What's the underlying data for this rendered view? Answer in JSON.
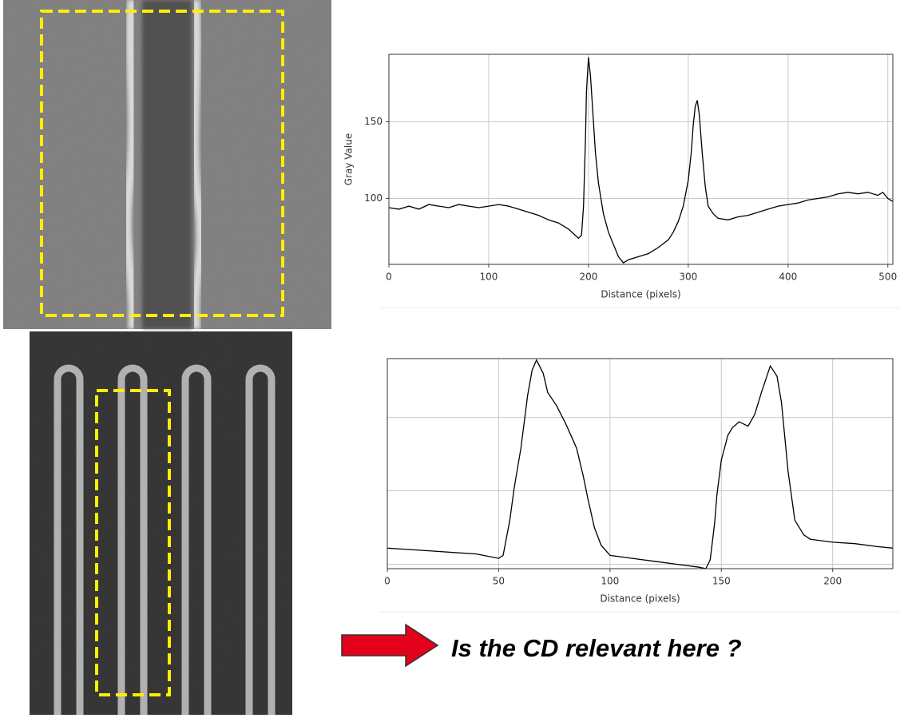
{
  "chart_data": [
    {
      "type": "line",
      "x_label": "Distance (pixels)",
      "y_label": "Gray Value",
      "x": [
        0,
        10,
        20,
        30,
        40,
        50,
        60,
        70,
        80,
        90,
        100,
        110,
        120,
        130,
        140,
        150,
        160,
        170,
        180,
        185,
        190,
        193,
        195,
        197,
        198,
        200,
        202,
        204,
        207,
        210,
        215,
        220,
        225,
        230,
        235,
        240,
        250,
        260,
        270,
        280,
        285,
        290,
        295,
        300,
        303,
        305,
        307,
        309,
        311,
        314,
        317,
        320,
        325,
        330,
        340,
        350,
        360,
        370,
        380,
        390,
        400,
        410,
        420,
        430,
        440,
        450,
        460,
        470,
        480,
        490,
        495,
        500,
        505
      ],
      "series": [
        {
          "color": "#000000",
          "values": [
            94,
            93,
            95,
            93,
            96,
            95,
            94,
            96,
            95,
            94,
            95,
            96,
            95,
            93,
            91,
            89,
            86,
            84,
            80,
            77,
            74,
            76,
            95,
            140,
            170,
            192,
            180,
            160,
            130,
            110,
            90,
            78,
            70,
            62,
            58,
            60,
            62,
            64,
            68,
            73,
            78,
            85,
            95,
            112,
            130,
            148,
            160,
            164,
            155,
            130,
            108,
            95,
            90,
            87,
            86,
            88,
            89,
            91,
            93,
            95,
            96,
            97,
            99,
            100,
            101,
            103,
            104,
            103,
            104,
            102,
            104,
            100,
            98
          ]
        }
      ],
      "xlim": [
        0,
        505
      ],
      "ylim": [
        57,
        194
      ],
      "xticks": [
        0,
        100,
        200,
        300,
        400,
        500
      ],
      "yticks": [
        100,
        150
      ],
      "grid": true
    },
    {
      "type": "line",
      "x_label": "Distance (pixels)",
      "x": [
        0,
        10,
        20,
        30,
        40,
        50,
        52,
        55,
        57,
        60,
        63,
        65,
        67,
        70,
        72,
        76,
        80,
        83,
        85,
        88,
        90,
        93,
        96,
        100,
        110,
        120,
        130,
        140,
        143,
        145,
        147,
        148,
        150,
        153,
        155,
        158,
        162,
        165,
        168,
        172,
        175,
        177,
        180,
        183,
        187,
        190,
        200,
        210,
        220,
        227
      ],
      "series": [
        {
          "color": "#000000",
          "values": [
            61,
            60,
            59,
            58,
            57,
            54,
            56,
            80,
            102,
            129,
            165,
            182,
            189,
            180,
            167,
            158,
            146,
            136,
            129,
            110,
            95,
            75,
            63,
            56,
            54,
            52,
            50,
            48,
            47,
            53,
            78,
            97,
            121,
            138,
            143,
            147,
            144,
            152,
            167,
            185,
            178,
            160,
            113,
            80,
            70,
            67,
            65,
            64,
            62,
            61
          ]
        }
      ],
      "xlim": [
        0,
        227
      ],
      "ylim": [
        47,
        190
      ],
      "xticks": [
        0,
        50,
        100,
        150,
        200
      ],
      "yticks": [
        50,
        100,
        150
      ],
      "grid": true
    }
  ],
  "caption": "Is the CD relevant here ?"
}
